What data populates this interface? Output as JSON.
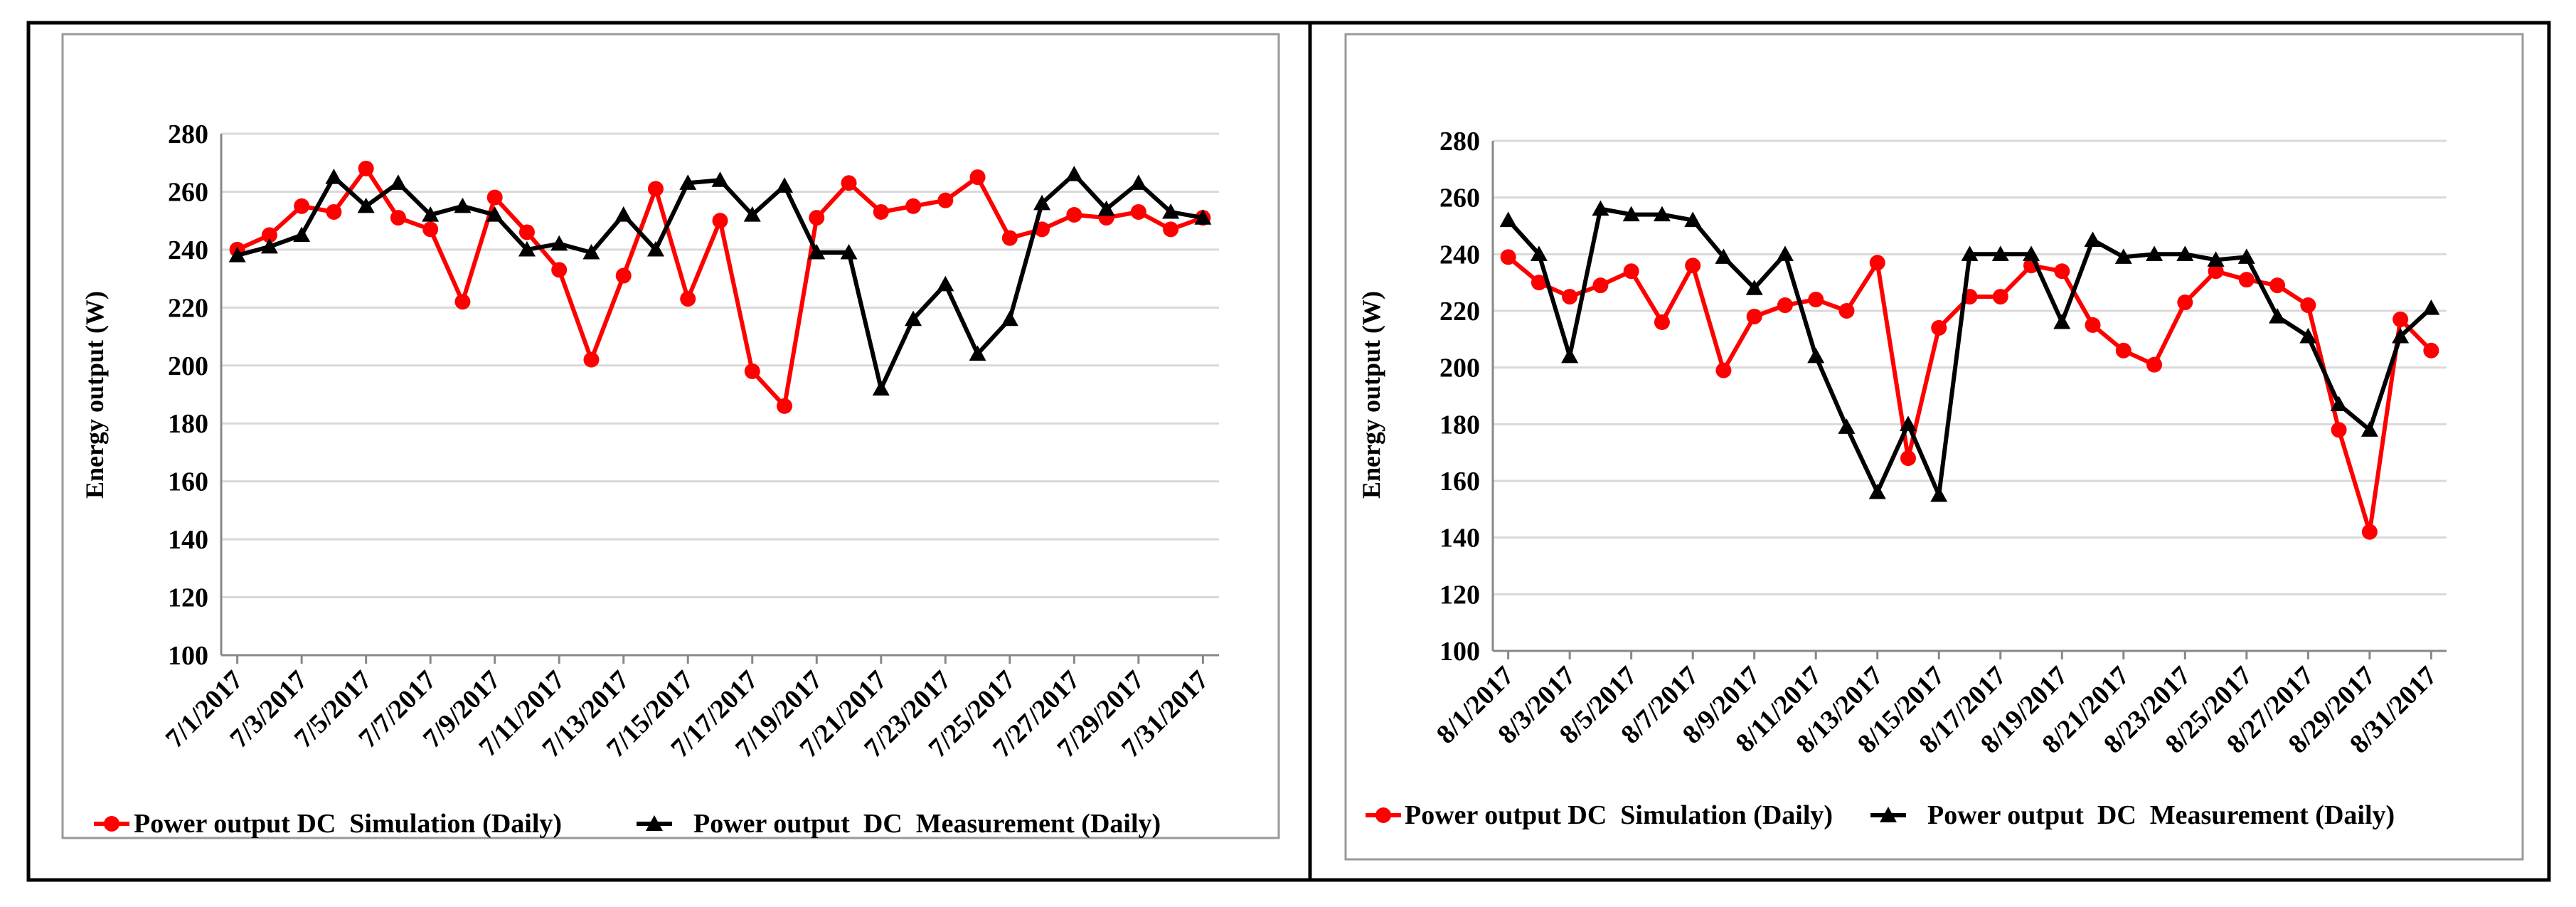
{
  "chart_data": [
    {
      "type": "line",
      "title": "",
      "xlabel": "",
      "ylabel": "Energy output (W)",
      "ylim": [
        100,
        280
      ],
      "yticks": [
        100,
        120,
        140,
        160,
        180,
        200,
        220,
        240,
        260,
        280
      ],
      "grid": true,
      "legend_position": "bottom",
      "colors": {
        "simulation": "#ff0000",
        "measurement": "#000000"
      },
      "categories": [
        "7/1/2017",
        "7/2/2017",
        "7/3/2017",
        "7/4/2017",
        "7/5/2017",
        "7/6/2017",
        "7/7/2017",
        "7/8/2017",
        "7/9/2017",
        "7/10/2017",
        "7/11/2017",
        "7/12/2017",
        "7/13/2017",
        "7/14/2017",
        "7/15/2017",
        "7/16/2017",
        "7/17/2017",
        "7/18/2017",
        "7/19/2017",
        "7/20/2017",
        "7/21/2017",
        "7/22/2017",
        "7/23/2017",
        "7/24/2017",
        "7/25/2017",
        "7/26/2017",
        "7/27/2017",
        "7/28/2017",
        "7/29/2017",
        "7/30/2017",
        "7/31/2017"
      ],
      "tick_labels": [
        "7/1/2017",
        "7/3/2017",
        "7/5/2017",
        "7/7/2017",
        "7/9/2017",
        "7/11/2017",
        "7/13/2017",
        "7/15/2017",
        "7/17/2017",
        "7/19/2017",
        "7/21/2017",
        "7/23/2017",
        "7/25/2017",
        "7/27/2017",
        "7/29/2017",
        "7/31/2017"
      ],
      "series": [
        {
          "name": "Power output DC  Simulation (Daily)",
          "marker": "circle",
          "color": "#ff0000",
          "values": [
            240,
            245,
            255,
            253,
            268,
            251,
            247,
            222,
            258,
            246,
            233,
            202,
            231,
            261,
            223,
            250,
            198,
            186,
            251,
            263,
            253,
            255,
            257,
            265,
            244,
            247,
            252,
            251,
            253,
            247,
            251
          ]
        },
        {
          "name": "Power output  DC  Measurement (Daily)",
          "marker": "triangle",
          "color": "#000000",
          "values": [
            238,
            241,
            245,
            265,
            255,
            263,
            252,
            255,
            252,
            240,
            242,
            239,
            252,
            240,
            263,
            264,
            252,
            262,
            239,
            239,
            192,
            216,
            228,
            204,
            216,
            256,
            266,
            254,
            263,
            253,
            251
          ]
        }
      ]
    },
    {
      "type": "line",
      "title": "",
      "xlabel": "",
      "ylabel": "Energy output (W)",
      "ylim": [
        100,
        280
      ],
      "yticks": [
        100,
        120,
        140,
        160,
        180,
        200,
        220,
        240,
        260,
        280
      ],
      "grid": true,
      "legend_position": "bottom",
      "colors": {
        "simulation": "#ff0000",
        "measurement": "#000000"
      },
      "categories": [
        "8/1/2017",
        "8/2/2017",
        "8/3/2017",
        "8/4/2017",
        "8/5/2017",
        "8/6/2017",
        "8/7/2017",
        "8/8/2017",
        "8/9/2017",
        "8/10/2017",
        "8/11/2017",
        "8/12/2017",
        "8/13/2017",
        "8/14/2017",
        "8/15/2017",
        "8/16/2017",
        "8/17/2017",
        "8/18/2017",
        "8/19/2017",
        "8/20/2017",
        "8/21/2017",
        "8/22/2017",
        "8/23/2017",
        "8/24/2017",
        "8/25/2017",
        "8/26/2017",
        "8/27/2017",
        "8/28/2017",
        "8/29/2017",
        "8/30/2017",
        "8/31/2017"
      ],
      "tick_labels": [
        "8/1/2017",
        "8/3/2017",
        "8/5/2017",
        "8/7/2017",
        "8/9/2017",
        "8/11/2017",
        "8/13/2017",
        "8/15/2017",
        "8/17/2017",
        "8/19/2017",
        "8/21/2017",
        "8/23/2017",
        "8/25/2017",
        "8/27/2017",
        "8/29/2017",
        "8/31/2017"
      ],
      "series": [
        {
          "name": "Power output DC  Simulation (Daily)",
          "marker": "circle",
          "color": "#ff0000",
          "values": [
            239,
            230,
            225,
            229,
            234,
            216,
            236,
            199,
            218,
            222,
            224,
            220,
            237,
            168,
            214,
            225,
            225,
            236,
            234,
            215,
            206,
            201,
            223,
            234,
            231,
            229,
            222,
            178,
            142,
            217,
            206
          ]
        },
        {
          "name": "Power output  DC  Measurement (Daily)",
          "marker": "triangle",
          "color": "#000000",
          "values": [
            252,
            240,
            204,
            256,
            254,
            254,
            252,
            239,
            228,
            240,
            204,
            179,
            156,
            180,
            155,
            240,
            240,
            240,
            216,
            245,
            239,
            240,
            240,
            238,
            239,
            218,
            211,
            187,
            178,
            211,
            221
          ]
        }
      ]
    }
  ]
}
